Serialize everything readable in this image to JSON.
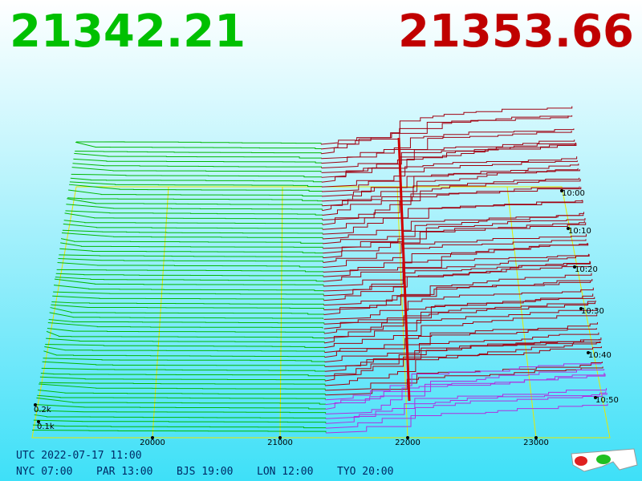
{
  "bid_price": "21342.21",
  "ask_price": "21353.66",
  "price_ticks": [
    "20000",
    "21000",
    "22000",
    "23000"
  ],
  "depth_ticks": [
    "0.2k",
    "0.1k"
  ],
  "time_ticks": [
    "10:00",
    "10:10",
    "10:20",
    "10:30",
    "10:40",
    "10:50"
  ],
  "utc": "UTC 2022-07-17 11:00",
  "clocks": [
    "NYC 07:00",
    "PAR 13:00",
    "BJS 19:00",
    "LON 12:00",
    "TYO 20:00"
  ]
}
